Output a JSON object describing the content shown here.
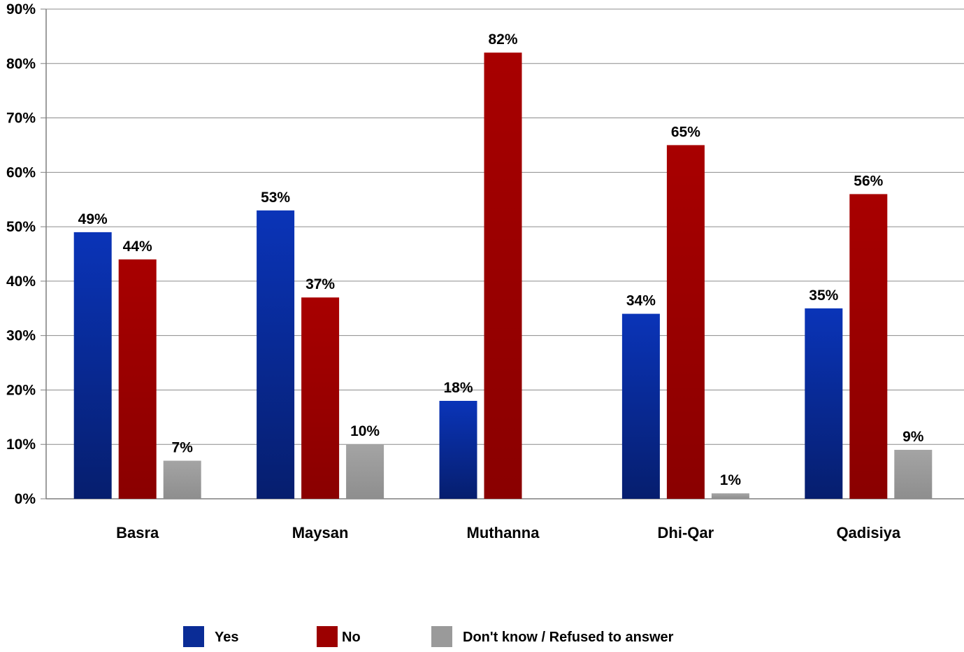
{
  "chart_data": {
    "type": "bar",
    "categories": [
      "Basra",
      "Maysan",
      "Muthanna",
      "Dhi-Qar",
      "Qadisiya"
    ],
    "series": [
      {
        "name": "Yes",
        "values": [
          49,
          53,
          18,
          34,
          35
        ],
        "labels": [
          "49%",
          "53%",
          "18%",
          "34%",
          "35%"
        ],
        "color": "#0a2c96"
      },
      {
        "name": "No",
        "values": [
          44,
          37,
          82,
          65,
          56
        ],
        "labels": [
          "44%",
          "37%",
          "82%",
          "65%",
          "56%"
        ],
        "color": "#9c0000"
      },
      {
        "name": "Don't know / Refused to answer",
        "values": [
          7,
          10,
          null,
          1,
          9
        ],
        "labels": [
          "7%",
          "10%",
          "",
          "1%",
          "9%"
        ],
        "color": "#9a9a9a"
      }
    ],
    "ylim": [
      0,
      90
    ],
    "yticks": [
      "0%",
      "10%",
      "20%",
      "30%",
      "40%",
      "50%",
      "60%",
      "70%",
      "80%",
      "90%"
    ],
    "grid": true,
    "legend_position": "bottom"
  }
}
